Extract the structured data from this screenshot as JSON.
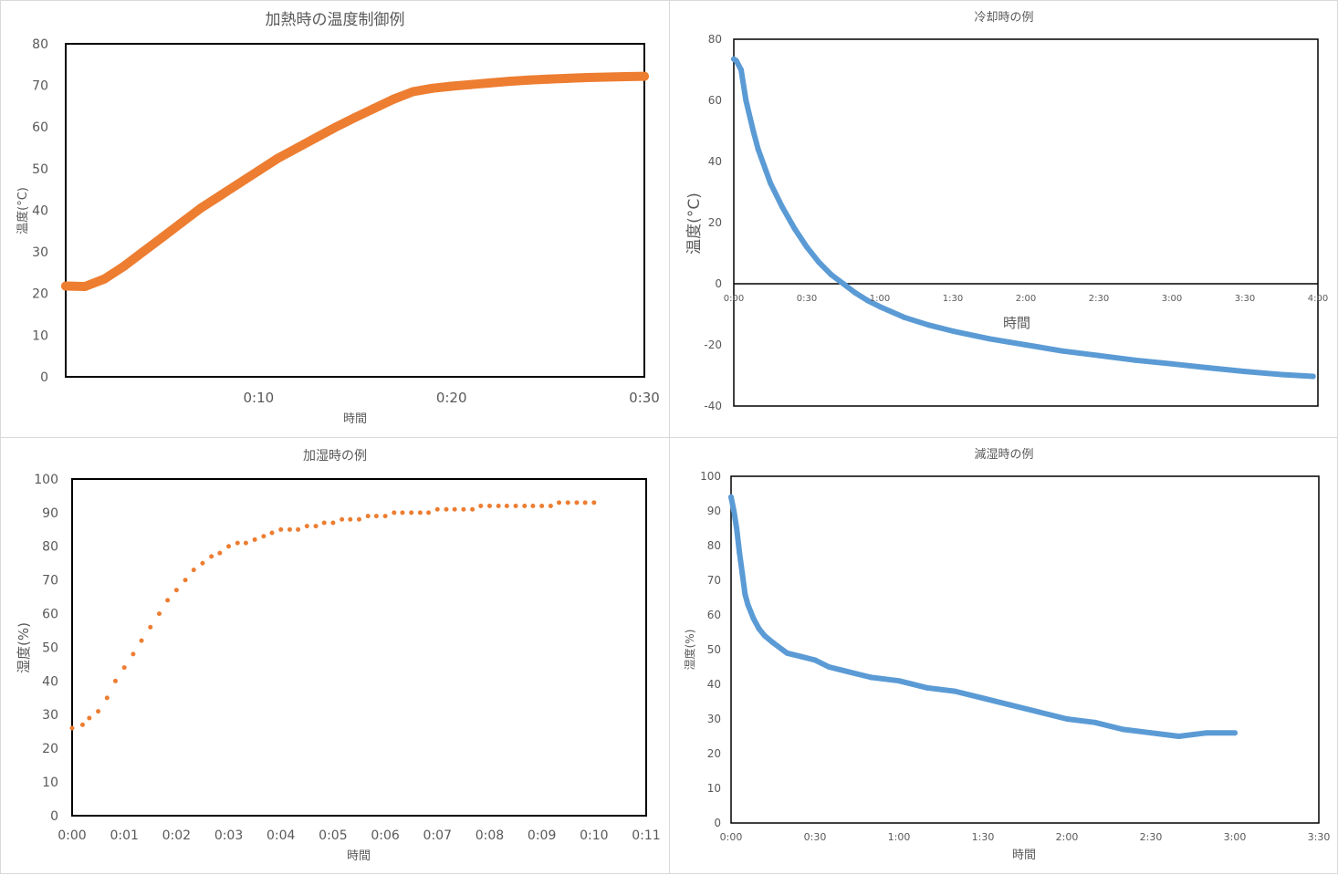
{
  "charts": {
    "heating": {
      "title": "加熱時の温度制御例",
      "xlabel": "時間",
      "ylabel": "温度(°C)",
      "yticks": [
        "0",
        "10",
        "20",
        "30",
        "40",
        "50",
        "60",
        "70",
        "80"
      ],
      "xticks": [
        "0:10",
        "0:20",
        "0:30"
      ],
      "color": "#ED7D31"
    },
    "cooling": {
      "title": "冷却時の例",
      "xlabel": "時間",
      "ylabel": "温度(°C)",
      "yticks": [
        "-40",
        "-20",
        "0",
        "20",
        "40",
        "60",
        "80"
      ],
      "xticks": [
        "0:00",
        "0:30",
        "1:00",
        "1:30",
        "2:00",
        "2:30",
        "3:00",
        "3:30",
        "4:00"
      ],
      "color": "#5B9BD5"
    },
    "humidify": {
      "title": "加湿時の例",
      "xlabel": "時間",
      "ylabel": "湿度(%)",
      "yticks": [
        "0",
        "10",
        "20",
        "30",
        "40",
        "50",
        "60",
        "70",
        "80",
        "90",
        "100"
      ],
      "xticks": [
        "0:00",
        "0:01",
        "0:02",
        "0:03",
        "0:04",
        "0:05",
        "0:06",
        "0:07",
        "0:08",
        "0:09",
        "0:10",
        "0:11"
      ],
      "color": "#ED7D31"
    },
    "dehumidify": {
      "title": "減湿時の例",
      "xlabel": "時間",
      "ylabel": "湿度(%)",
      "yticks": [
        "0",
        "10",
        "20",
        "30",
        "40",
        "50",
        "60",
        "70",
        "80",
        "90",
        "100"
      ],
      "xticks": [
        "0:00",
        "0:30",
        "1:00",
        "1:30",
        "2:00",
        "2:30",
        "3:00",
        "3:30"
      ],
      "color": "#5B9BD5"
    }
  },
  "chart_data": [
    {
      "type": "scatter",
      "title": "加熱時の温度制御例",
      "xlabel": "時間",
      "ylabel": "温度(°C)",
      "xlim": [
        0,
        30
      ],
      "ylim": [
        0,
        80
      ],
      "x_unit": "minutes",
      "series": [
        {
          "x": [
            0,
            1,
            2,
            3,
            4,
            5,
            6,
            7,
            8,
            9,
            10,
            11,
            12,
            13,
            14,
            15,
            16,
            17,
            18,
            19,
            20,
            21,
            22,
            23,
            24,
            25,
            26,
            27,
            28,
            29,
            30
          ],
          "y": [
            21.8,
            21.7,
            23.5,
            26.5,
            30,
            33.5,
            37,
            40.5,
            43.5,
            46.5,
            49.5,
            52.5,
            55,
            57.5,
            60,
            62.3,
            64.5,
            66.7,
            68.5,
            69.3,
            69.8,
            70.2,
            70.6,
            71,
            71.3,
            71.5,
            71.7,
            71.9,
            72,
            72.1,
            72.2
          ]
        }
      ]
    },
    {
      "type": "scatter",
      "title": "冷却時の例",
      "xlabel": "時間",
      "ylabel": "温度(°C)",
      "xlim": [
        "0:00",
        "4:00"
      ],
      "ylim": [
        -40,
        80
      ],
      "series": [
        {
          "x": [
            "0:00",
            "0:01",
            "0:03",
            "0:05",
            "0:08",
            "0:10",
            "0:15",
            "0:20",
            "0:25",
            "0:30",
            "0:35",
            "0:40",
            "0:45",
            "0:50",
            "0:55",
            "1:00",
            "1:10",
            "1:20",
            "1:30",
            "1:45",
            "2:00",
            "2:15",
            "2:30",
            "2:45",
            "3:00",
            "3:15",
            "3:30",
            "3:45",
            "3:58"
          ],
          "y": [
            73.5,
            73,
            70,
            60,
            50,
            44,
            33,
            25,
            18,
            12,
            7,
            3,
            0,
            -3,
            -5.5,
            -7.5,
            -11,
            -13.5,
            -15.5,
            -18,
            -20,
            -22,
            -23.5,
            -25,
            -26.2,
            -27.5,
            -28.7,
            -29.7,
            -30.3
          ]
        }
      ]
    },
    {
      "type": "scatter",
      "title": "加湿時の例",
      "xlabel": "時間",
      "ylabel": "湿度(%)",
      "xlim": [
        "0:00",
        "0:11"
      ],
      "ylim": [
        0,
        100
      ],
      "x_unit": "minutes",
      "series": [
        {
          "x": [
            0,
            0.2,
            0.33,
            0.5,
            0.67,
            0.83,
            1.0,
            1.17,
            1.33,
            1.5,
            1.67,
            1.83,
            2.0,
            2.17,
            2.33,
            2.5,
            2.67,
            2.83,
            3.0,
            3.17,
            3.33,
            3.5,
            3.67,
            3.83,
            4.0,
            4.17,
            4.33,
            4.5,
            4.67,
            4.83,
            5.0,
            5.17,
            5.33,
            5.5,
            5.67,
            5.83,
            6.0,
            6.17,
            6.33,
            6.5,
            6.67,
            6.83,
            7.0,
            7.17,
            7.33,
            7.5,
            7.67,
            7.83,
            8.0,
            8.17,
            8.33,
            8.5,
            8.67,
            8.83,
            9.0,
            9.17,
            9.33,
            9.5,
            9.67,
            9.83,
            10.0
          ],
          "y": [
            26,
            27,
            29,
            31,
            35,
            40,
            44,
            48,
            52,
            56,
            60,
            64,
            67,
            70,
            73,
            75,
            77,
            78,
            80,
            81,
            81,
            82,
            83,
            84,
            85,
            85,
            85,
            86,
            86,
            87,
            87,
            88,
            88,
            88,
            89,
            89,
            89,
            90,
            90,
            90,
            90,
            90,
            91,
            91,
            91,
            91,
            91,
            92,
            92,
            92,
            92,
            92,
            92,
            92,
            92,
            92,
            93,
            93,
            93,
            93,
            93
          ]
        }
      ]
    },
    {
      "type": "scatter",
      "title": "減湿時の例",
      "xlabel": "時間",
      "ylabel": "湿度(%)",
      "xlim": [
        "0:00",
        "3:30"
      ],
      "ylim": [
        0,
        100
      ],
      "series": [
        {
          "x": [
            "0:00",
            "0:01",
            "0:02",
            "0:03",
            "0:04",
            "0:05",
            "0:06",
            "0:08",
            "0:10",
            "0:12",
            "0:15",
            "0:20",
            "0:25",
            "0:30",
            "0:35",
            "0:40",
            "0:45",
            "0:50",
            "1:00",
            "1:10",
            "1:20",
            "1:30",
            "1:40",
            "1:50",
            "2:00",
            "2:10",
            "2:20",
            "2:30",
            "2:40",
            "2:50",
            "3:00"
          ],
          "y": [
            94,
            90,
            85,
            78,
            72,
            66,
            63,
            59,
            56,
            54,
            52,
            49,
            48,
            47,
            45,
            44,
            43,
            42,
            41,
            39,
            38,
            36,
            34,
            32,
            30,
            29,
            27,
            26,
            25,
            26,
            26
          ]
        }
      ]
    }
  ]
}
